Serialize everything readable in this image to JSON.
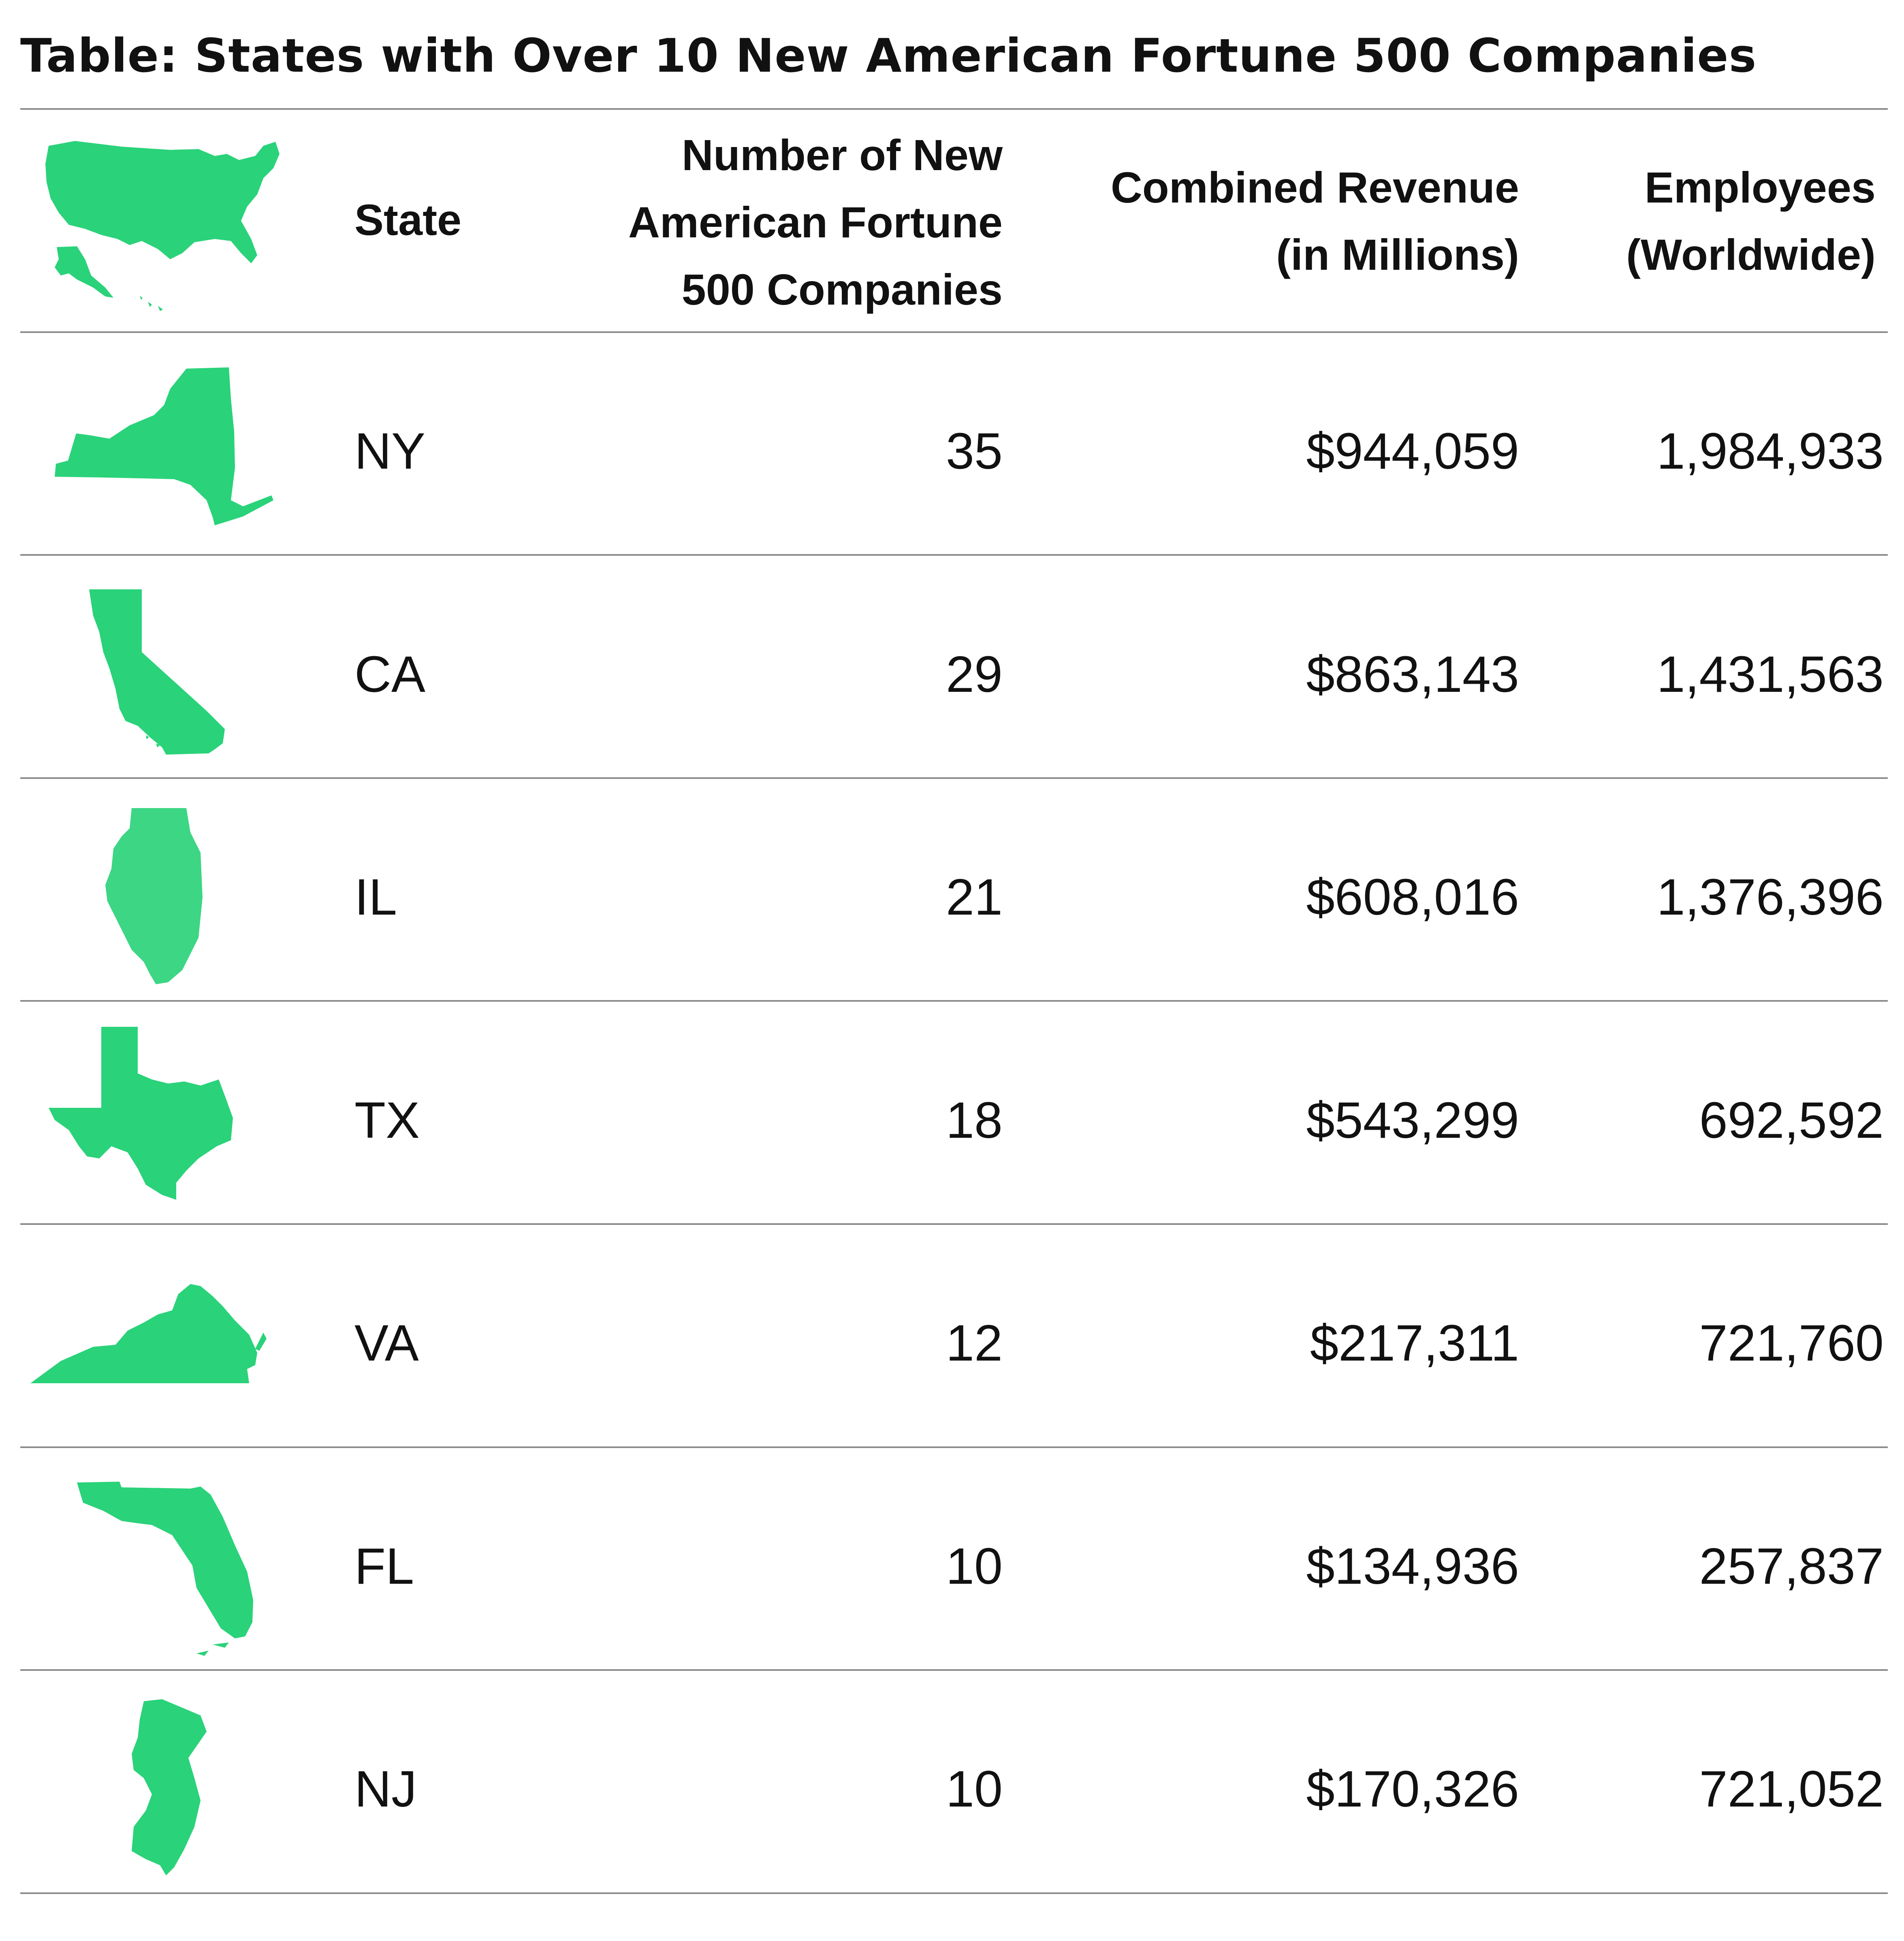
{
  "chart_data": {
    "type": "table",
    "title": "Table: States with Over 10 New American Fortune 500 Companies",
    "columns": [
      "",
      "State",
      "Number of New\nAmerican  Fortune\n500 Companies",
      "Combined Revenue\n(in Millions)",
      "Employees\n(Worldwide)"
    ],
    "header_icon": "us-map-icon",
    "rows": [
      {
        "state": "NY",
        "companies": "35",
        "revenue": "$944,059",
        "employees": "1,984,933",
        "icon": "new-york-map-icon"
      },
      {
        "state": "CA",
        "companies": "29",
        "revenue": "$863,143",
        "employees": "1,431,563",
        "icon": "california-map-icon"
      },
      {
        "state": "IL",
        "companies": "21",
        "revenue": "$608,016",
        "employees": "1,376,396",
        "icon": "illinois-map-icon"
      },
      {
        "state": "TX",
        "companies": "18",
        "revenue": "$543,299",
        "employees": "692,592",
        "icon": "texas-map-icon"
      },
      {
        "state": "VA",
        "companies": "12",
        "revenue": "$217,311",
        "employees": "721,760",
        "icon": "virginia-map-icon"
      },
      {
        "state": "FL",
        "companies": "10",
        "revenue": "$134,936",
        "employees": "257,837",
        "icon": "florida-map-icon"
      },
      {
        "state": "NJ",
        "companies": "10",
        "revenue": "$170,326",
        "employees": "721,052",
        "icon": "new-jersey-map-icon"
      }
    ]
  },
  "colors": {
    "map_fill": "#2ad27a",
    "rule": "#8a8a8a",
    "text": "#111111"
  }
}
